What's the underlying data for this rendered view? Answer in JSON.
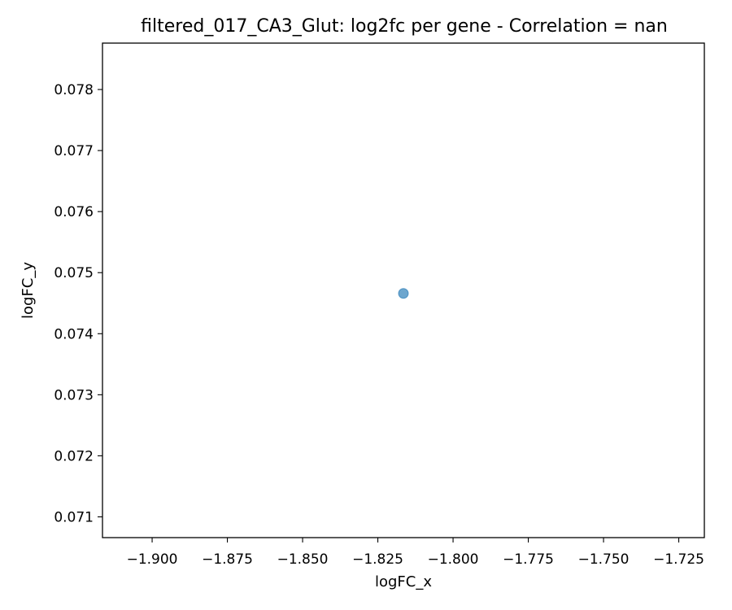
{
  "chart_data": {
    "type": "scatter",
    "title": "filtered_017_CA3_Glut: log2fc per gene - Correlation = nan",
    "xlabel": "logFC_x",
    "ylabel": "logFC_y",
    "xlim": [
      -1.9165,
      -1.7165
    ],
    "ylim": [
      0.07066,
      0.07876
    ],
    "x_ticks": [
      -1.9,
      -1.875,
      -1.85,
      -1.825,
      -1.8,
      -1.775,
      -1.75,
      -1.725
    ],
    "x_tick_labels": [
      "−1.900",
      "−1.875",
      "−1.850",
      "−1.825",
      "−1.800",
      "−1.775",
      "−1.750",
      "−1.725"
    ],
    "y_ticks": [
      0.071,
      0.072,
      0.073,
      0.074,
      0.075,
      0.076,
      0.077,
      0.078
    ],
    "y_tick_labels": [
      "0.071",
      "0.072",
      "0.073",
      "0.074",
      "0.075",
      "0.076",
      "0.077",
      "0.078"
    ],
    "grid": false,
    "series": [
      {
        "x": [
          -1.8165
        ],
        "y": [
          0.07466
        ]
      }
    ],
    "colors": {
      "point": "#1f77b4",
      "point_alpha": 0.65
    }
  }
}
